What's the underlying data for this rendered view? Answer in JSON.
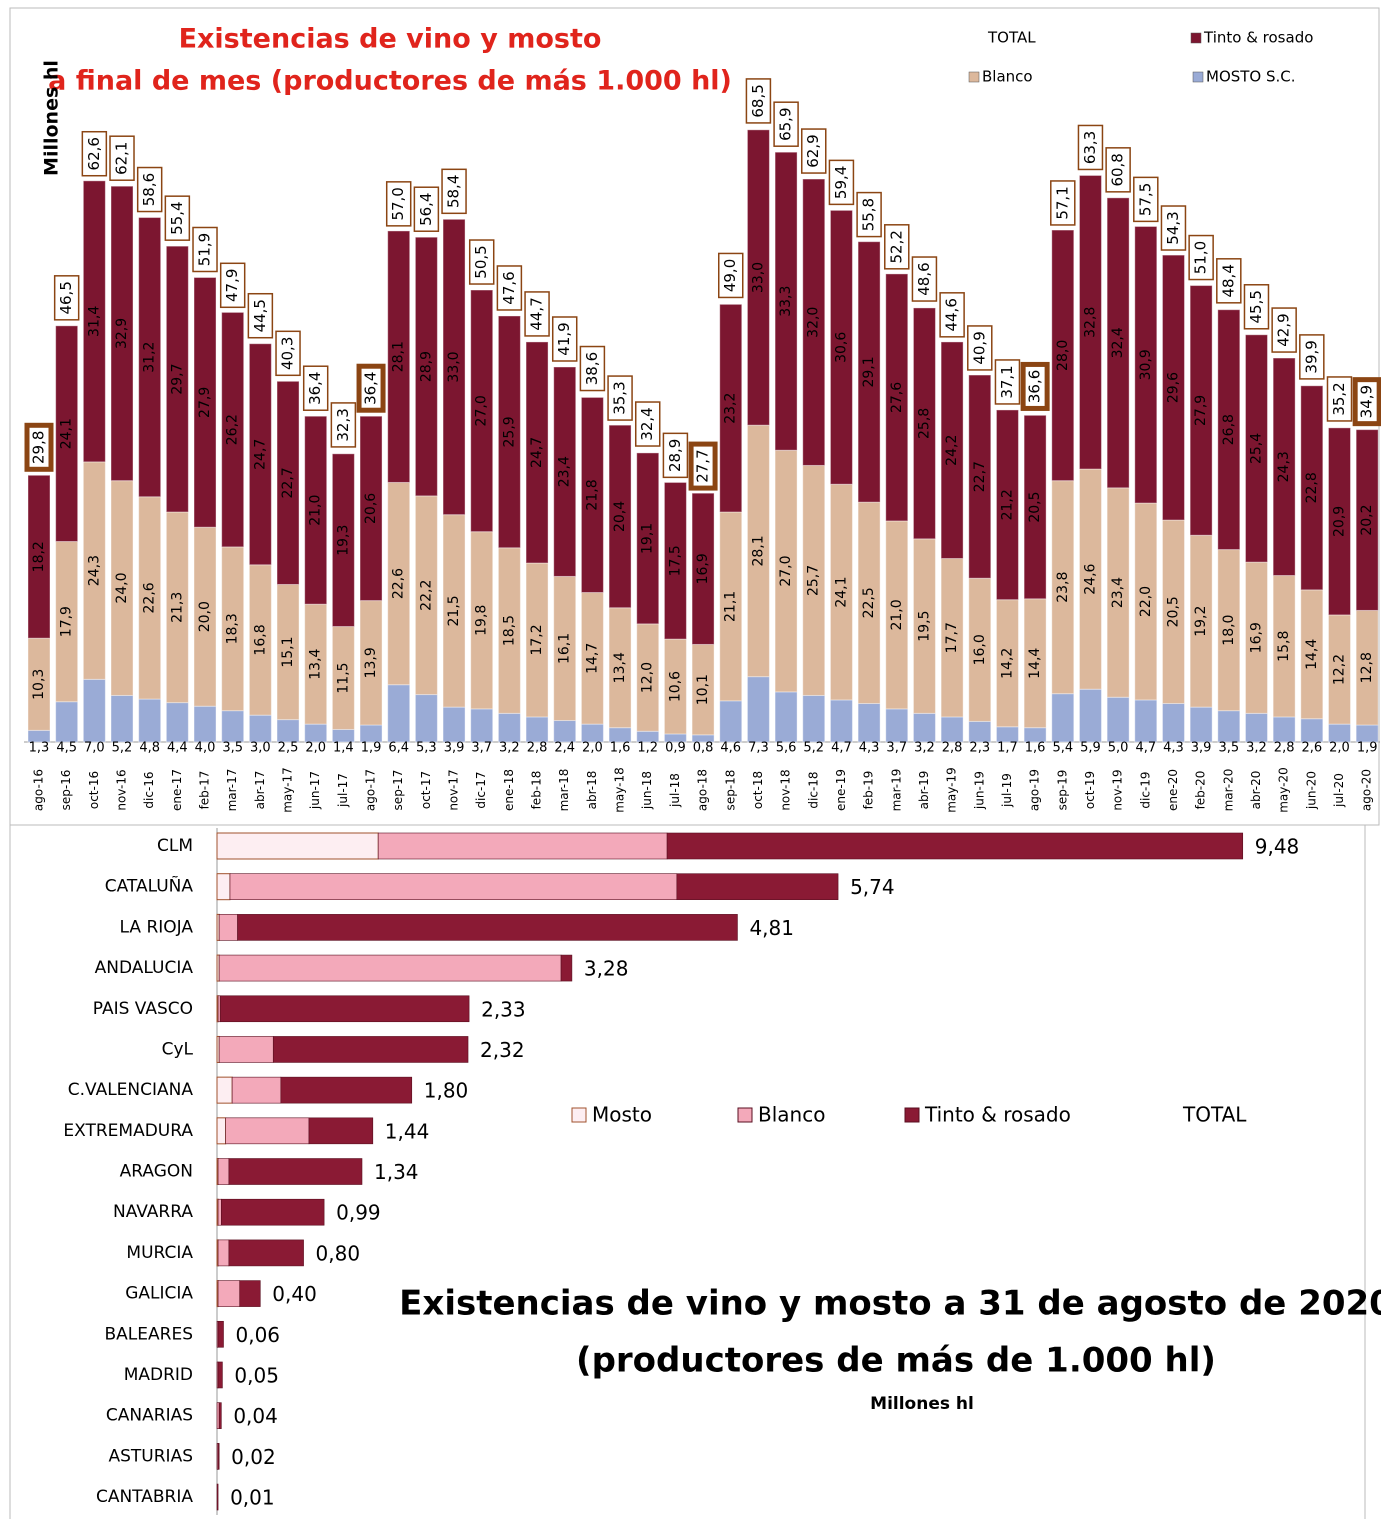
{
  "chart_data": [
    {
      "type": "bar",
      "stacked": true,
      "title": [
        "Existencias de vino y mosto",
        "a final de mes (productores de más 1.000 hl)"
      ],
      "y_label": "Millones hl",
      "legend": "top-right",
      "categories": [
        "ago-16",
        "sep-16",
        "oct-16",
        "nov-16",
        "dic-16",
        "ene-17",
        "feb-17",
        "mar-17",
        "abr-17",
        "may-17",
        "jun-17",
        "jul-17",
        "ago-17",
        "sep-17",
        "oct-17",
        "nov-17",
        "dic-17",
        "ene-18",
        "feb-18",
        "mar-18",
        "abr-18",
        "may-18",
        "jun-18",
        "jul-18",
        "ago-18",
        "sep-18",
        "oct-18",
        "nov-18",
        "dic-18",
        "ene-19",
        "feb-19",
        "mar-19",
        "abr-19",
        "may-19",
        "jun-19",
        "jul-19",
        "ago-19",
        "sep-19",
        "oct-19",
        "nov-19",
        "dic-19",
        "ene-20",
        "feb-20",
        "mar-20",
        "abr-20",
        "may-20",
        "jun-20",
        "jul-20",
        "ago-20"
      ],
      "series": [
        {
          "name": "MOSTO S.C.",
          "color": "#9aabd6",
          "values": [
            1.3,
            4.5,
            7.0,
            5.2,
            4.8,
            4.4,
            4.0,
            3.5,
            3.0,
            2.5,
            2.0,
            1.4,
            1.9,
            6.4,
            5.3,
            3.9,
            3.7,
            3.2,
            2.8,
            2.4,
            2.0,
            1.6,
            1.2,
            0.9,
            0.8,
            4.6,
            7.3,
            5.6,
            5.2,
            4.7,
            4.3,
            3.7,
            3.2,
            2.8,
            2.3,
            1.7,
            1.6,
            5.4,
            5.9,
            5.0,
            4.7,
            4.3,
            3.9,
            3.5,
            3.2,
            2.8,
            2.6,
            2.0,
            1.9
          ],
          "value_labels": [
            "1,3",
            "4,5",
            "7,0",
            "5,2",
            "4,8",
            "4,4",
            "4,0",
            "3,5",
            "3,0",
            "2,5",
            "2,0",
            "1,4",
            "1,9",
            "6,4",
            "5,3",
            "3,9",
            "3,7",
            "3,2",
            "2,8",
            "2,4",
            "2,0",
            "1,6",
            "1,2",
            "0,9",
            "0,8",
            "4,6",
            "7,3",
            "5,6",
            "5,2",
            "4,7",
            "4,3",
            "3,7",
            "3,2",
            "2,8",
            "2,3",
            "1,7",
            "1,6",
            "5,4",
            "5,9",
            "5,0",
            "4,7",
            "4,3",
            "3,9",
            "3,5",
            "3,2",
            "2,8",
            "2,6",
            "2,0",
            "1,9"
          ]
        },
        {
          "name": "Blanco",
          "color": "#dcb89c",
          "values": [
            10.3,
            17.9,
            24.3,
            24.0,
            22.6,
            21.3,
            20.0,
            18.3,
            16.8,
            15.1,
            13.4,
            11.5,
            13.9,
            22.6,
            22.2,
            21.5,
            19.8,
            18.5,
            17.2,
            16.1,
            14.7,
            13.4,
            12.0,
            10.6,
            10.1,
            21.1,
            28.1,
            27.0,
            25.7,
            24.1,
            22.5,
            21.0,
            19.5,
            17.7,
            16.0,
            14.2,
            14.4,
            23.8,
            24.6,
            23.4,
            22.0,
            20.5,
            19.2,
            18.0,
            16.9,
            15.8,
            14.4,
            12.2,
            12.8
          ],
          "value_labels": [
            "10,3",
            "17,9",
            "24,3",
            "24,0",
            "22,6",
            "21,3",
            "20,0",
            "18,3",
            "16,8",
            "15,1",
            "13,4",
            "11,5",
            "13,9",
            "22,6",
            "22,2",
            "21,5",
            "19,8",
            "18,5",
            "17,2",
            "16,1",
            "14,7",
            "13,4",
            "12,0",
            "10,6",
            "10,1",
            "21,1",
            "28,1",
            "27,0",
            "25,7",
            "24,1",
            "22,5",
            "21,0",
            "19,5",
            "17,7",
            "16,0",
            "14,2",
            "14,4",
            "23,8",
            "24,6",
            "23,4",
            "22,0",
            "20,5",
            "19,2",
            "18,0",
            "16,9",
            "15,8",
            "14,4",
            "12,2",
            "12,8"
          ]
        },
        {
          "name": "Tinto & rosado",
          "color": "#7c1630",
          "values": [
            18.2,
            24.1,
            31.4,
            32.9,
            31.2,
            29.7,
            27.9,
            26.2,
            24.7,
            22.7,
            21.0,
            19.3,
            20.6,
            28.1,
            28.9,
            33.0,
            27.0,
            25.9,
            24.7,
            23.4,
            21.8,
            20.4,
            19.1,
            17.5,
            16.9,
            23.2,
            33.0,
            33.3,
            32.0,
            30.6,
            29.1,
            27.6,
            25.8,
            24.2,
            22.7,
            21.2,
            20.5,
            28.0,
            32.8,
            32.4,
            30.9,
            29.6,
            27.9,
            26.8,
            25.4,
            24.3,
            22.8,
            20.9,
            20.2
          ],
          "value_labels": [
            "18,2",
            "24,1",
            "31,4",
            "32,9",
            "31,2",
            "29,7",
            "27,9",
            "26,2",
            "24,7",
            "22,7",
            "21,0",
            "19,3",
            "20,6",
            "28,1",
            "28,9",
            "33,0",
            "27,0",
            "25,9",
            "24,7",
            "23,4",
            "21,8",
            "20,4",
            "19,1",
            "17,5",
            "16,9",
            "23,2",
            "33,0",
            "33,3",
            "32,0",
            "30,6",
            "29,1",
            "27,6",
            "25,8",
            "24,2",
            "22,7",
            "21,2",
            "20,5",
            "28,0",
            "32,8",
            "32,4",
            "30,9",
            "29,6",
            "27,9",
            "26,8",
            "25,4",
            "24,3",
            "22,8",
            "20,9",
            "20,2"
          ]
        }
      ],
      "total": {
        "name": "TOTAL",
        "color": "#8b4513",
        "values": [
          29.8,
          46.5,
          62.6,
          62.1,
          58.6,
          55.4,
          51.9,
          47.9,
          44.5,
          40.3,
          36.4,
          32.3,
          36.4,
          57.0,
          56.4,
          58.4,
          50.5,
          47.6,
          44.7,
          41.9,
          38.6,
          35.3,
          32.4,
          28.9,
          27.7,
          49.0,
          68.5,
          65.9,
          62.9,
          59.4,
          55.8,
          52.2,
          48.6,
          44.6,
          40.9,
          37.1,
          36.6,
          57.1,
          63.3,
          60.8,
          57.5,
          54.3,
          51.0,
          48.4,
          45.5,
          42.9,
          39.9,
          35.2,
          34.9
        ],
        "value_labels": [
          "29,8",
          "46,5",
          "62,6",
          "62,1",
          "58,6",
          "55,4",
          "51,9",
          "47,9",
          "44,5",
          "40,3",
          "36,4",
          "32,3",
          "36,4",
          "57,0",
          "56,4",
          "58,4",
          "50,5",
          "47,6",
          "44,7",
          "41,9",
          "38,6",
          "35,3",
          "32,4",
          "28,9",
          "27,7",
          "49,0",
          "68,5",
          "65,9",
          "62,9",
          "59,4",
          "55,8",
          "52,2",
          "48,6",
          "44,6",
          "40,9",
          "37,1",
          "36,6",
          "57,1",
          "63,3",
          "60,8",
          "57,5",
          "54,3",
          "51,0",
          "48,4",
          "45,5",
          "42,9",
          "39,9",
          "35,2",
          "34,9"
        ]
      },
      "highlighted": [
        0,
        12,
        24,
        36,
        48
      ]
    },
    {
      "type": "hbar",
      "stacked": true,
      "title": [
        "Existencias de vino y mosto a 31 de agosto de 2020",
        "(productores de más de 1.000 hl)"
      ],
      "subtitle": "Millones hl",
      "categories": [
        "CLM",
        "CATALUÑA",
        "LA RIOJA",
        "ANDALUCIA",
        "PAIS VASCO",
        "CyL",
        "C.VALENCIANA",
        "EXTREMADURA",
        "ARAGON",
        "NAVARRA",
        "MURCIA",
        "GALICIA",
        "BALEARES",
        "MADRID",
        "CANARIAS",
        "ASTURIAS",
        "CANTABRIA"
      ],
      "series": [
        {
          "name": "Mosto",
          "color": "#fdeef2",
          "values": [
            1.49,
            0.12,
            0.02,
            0.02,
            0.01,
            0.02,
            0.14,
            0.08,
            0.01,
            0.01,
            0.01,
            0.01,
            0,
            0,
            0,
            0,
            0
          ]
        },
        {
          "name": "Blanco",
          "color": "#f3a9ba",
          "values": [
            2.67,
            4.13,
            0.17,
            3.16,
            0.02,
            0.5,
            0.45,
            0.77,
            0.1,
            0.03,
            0.1,
            0.2,
            0.01,
            0.01,
            0.02,
            0.01,
            0
          ]
        },
        {
          "name": "Tinto & rosado",
          "color": "#8a1a34",
          "values": [
            5.32,
            1.49,
            4.62,
            0.1,
            2.3,
            1.8,
            1.21,
            0.59,
            1.23,
            0.95,
            0.69,
            0.19,
            0.05,
            0.04,
            0.02,
            0.01,
            0.01
          ]
        }
      ],
      "total": {
        "name": "TOTAL",
        "values": [
          9.48,
          5.74,
          4.81,
          3.28,
          2.33,
          2.32,
          1.8,
          1.44,
          1.34,
          0.99,
          0.8,
          0.4,
          0.06,
          0.05,
          0.04,
          0.02,
          0.01
        ],
        "value_labels": [
          "9,48",
          "5,74",
          "4,81",
          "3,28",
          "2,33",
          "2,32",
          "1,80",
          "1,44",
          "1,34",
          "0,99",
          "0,80",
          "0,40",
          "0,06",
          "0,05",
          "0,04",
          "0,02",
          "0,01"
        ]
      },
      "legend": "center"
    }
  ]
}
